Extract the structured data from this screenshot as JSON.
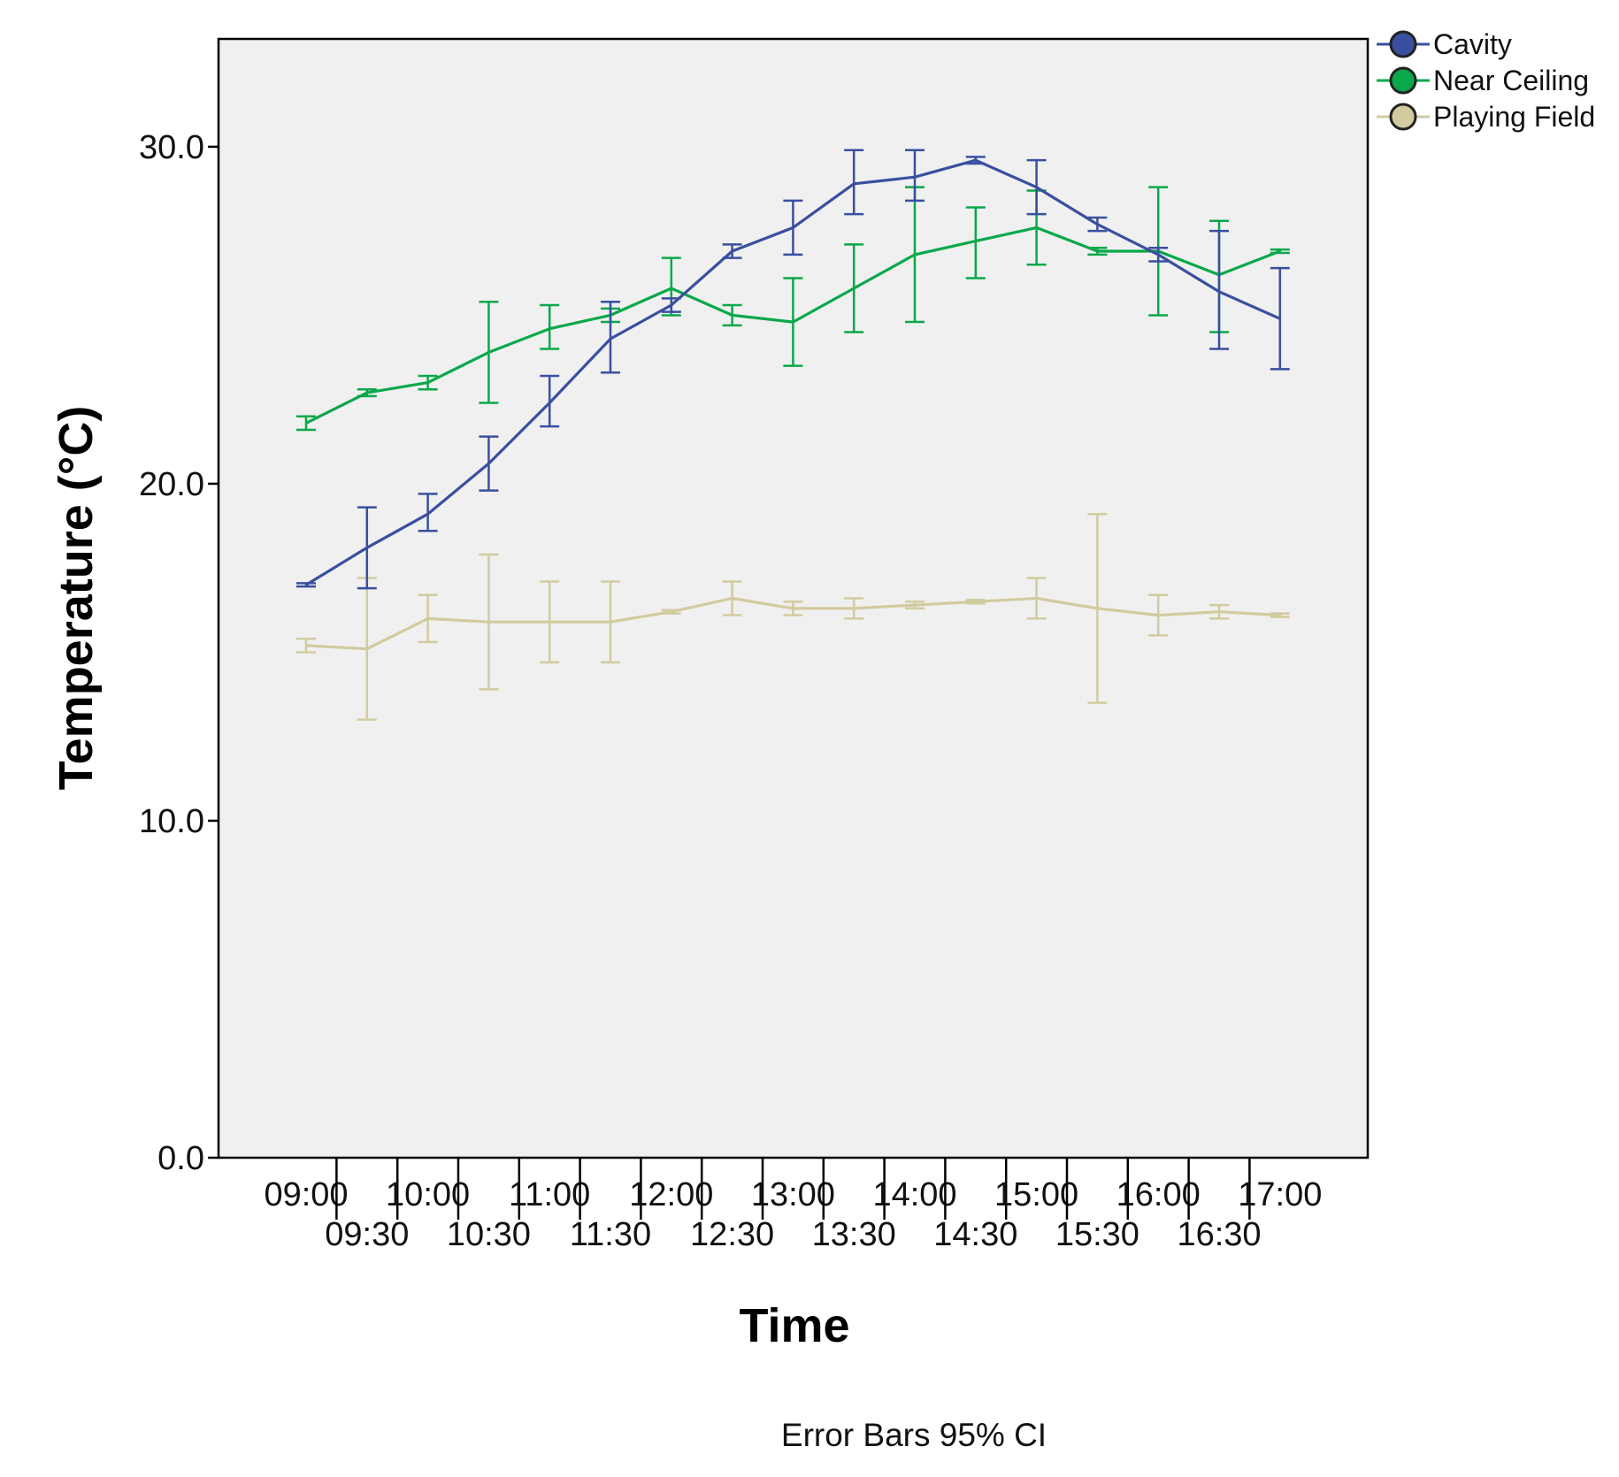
{
  "chart_data": {
    "type": "line",
    "title": "",
    "xlabel": "Time",
    "ylabel": "Temperature (°C)",
    "footnote": "Error Bars 95% CI",
    "ylim": [
      0,
      33.2
    ],
    "yticks": [
      0,
      10,
      20,
      30
    ],
    "ytick_labels": [
      "0.0",
      "10.0",
      "20.0",
      "30.0"
    ],
    "categories": [
      "09:00",
      "09:30",
      "10:00",
      "10:30",
      "11:00",
      "11:30",
      "12:00",
      "12:30",
      "13:00",
      "13:30",
      "14:00",
      "14:30",
      "15:00",
      "15:30",
      "16:00",
      "16:30",
      "17:00"
    ],
    "legend_position": "top-right",
    "error_bars": "95% CI",
    "series": [
      {
        "name": "Cavity",
        "color": "#3a4fa0",
        "values": [
          17.0,
          18.1,
          19.1,
          20.6,
          22.4,
          24.3,
          25.3,
          26.9,
          27.6,
          28.9,
          29.1,
          29.6,
          28.8,
          27.7,
          26.8,
          25.7,
          24.9
        ],
        "ci_low": [
          16.95,
          16.9,
          18.6,
          19.8,
          21.7,
          23.3,
          25.1,
          26.7,
          26.8,
          28.0,
          28.4,
          29.5,
          28.0,
          27.5,
          26.6,
          24.0,
          23.4
        ],
        "ci_high": [
          17.05,
          19.3,
          19.7,
          21.4,
          23.2,
          25.4,
          25.5,
          27.1,
          28.4,
          29.9,
          29.9,
          29.7,
          29.6,
          27.9,
          27.0,
          27.5,
          26.4
        ]
      },
      {
        "name": "Near Ceiling",
        "color": "#0aa84a",
        "values": [
          21.8,
          22.7,
          23.0,
          23.9,
          24.6,
          25.0,
          25.8,
          25.0,
          24.8,
          25.8,
          26.8,
          27.2,
          27.6,
          26.9,
          26.9,
          26.2,
          26.9
        ],
        "ci_low": [
          21.6,
          22.6,
          22.8,
          22.4,
          24.0,
          24.8,
          25.0,
          24.7,
          23.5,
          24.5,
          24.8,
          26.1,
          26.5,
          26.8,
          25.0,
          24.5,
          26.85
        ],
        "ci_high": [
          22.0,
          22.8,
          23.2,
          25.4,
          25.3,
          25.2,
          26.7,
          25.3,
          26.1,
          27.1,
          28.8,
          28.2,
          28.7,
          27.0,
          28.8,
          27.8,
          26.95
        ]
      },
      {
        "name": "Playing Field",
        "color": "#d2cb9f",
        "values": [
          15.2,
          15.1,
          16.0,
          15.9,
          15.9,
          15.9,
          16.2,
          16.6,
          16.3,
          16.3,
          16.4,
          16.5,
          16.6,
          16.3,
          16.1,
          16.2,
          16.1
        ],
        "ci_low": [
          15.0,
          13.0,
          15.3,
          13.9,
          14.7,
          14.7,
          16.15,
          16.1,
          16.1,
          16.0,
          16.3,
          16.45,
          16.0,
          13.5,
          15.5,
          16.0,
          16.05
        ],
        "ci_high": [
          15.4,
          17.2,
          16.7,
          17.9,
          17.1,
          17.1,
          16.25,
          17.1,
          16.5,
          16.6,
          16.5,
          16.55,
          17.2,
          19.1,
          16.7,
          16.4,
          16.15
        ]
      }
    ]
  }
}
